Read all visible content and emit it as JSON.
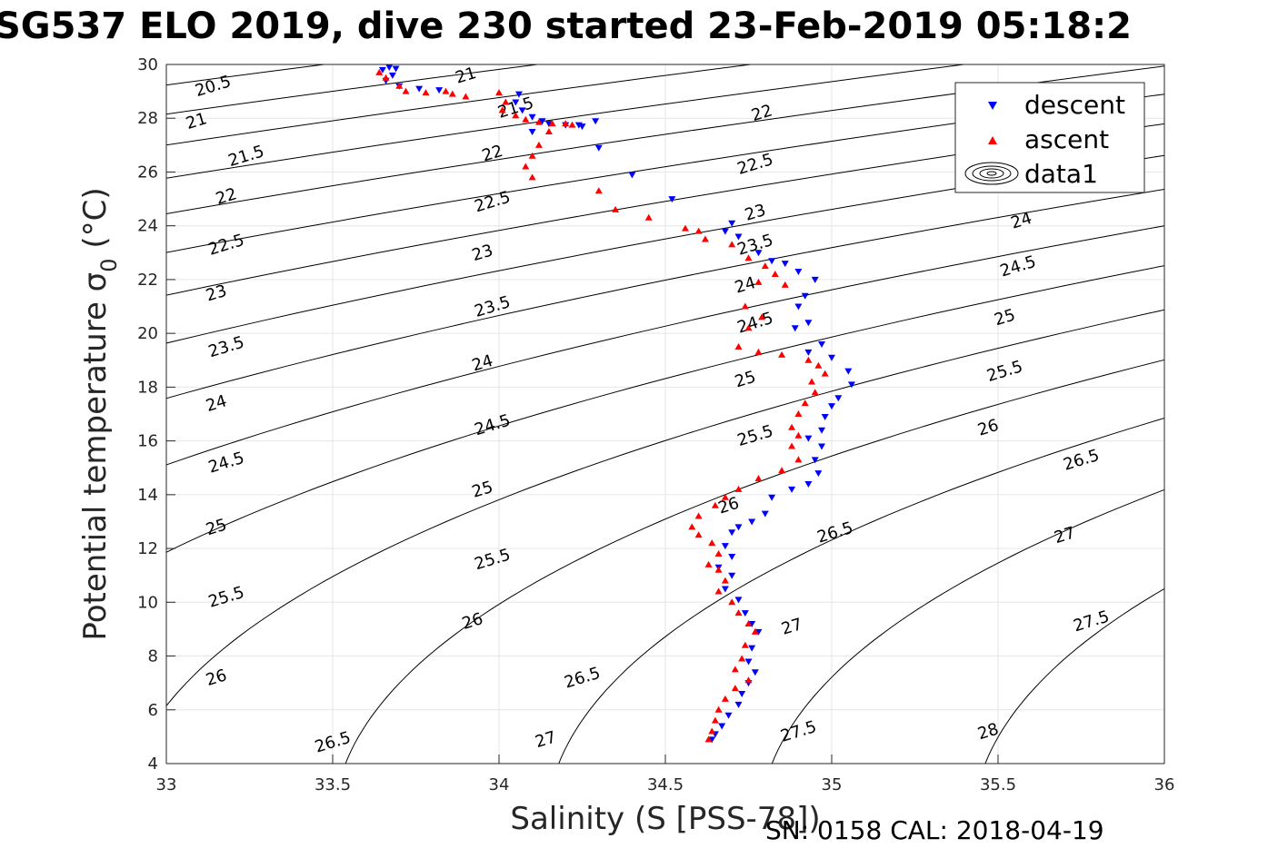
{
  "title": "SG537 ELO 2019, dive 230 started 23-Feb-2019 05:18:2",
  "footer": "SN: 0158  CAL: 2018-04-19",
  "chart_data": {
    "type": "scatter",
    "xlabel": "Salinity (S [PSS-78])",
    "ylabel_main": "Potential temperature σ",
    "ylabel_sub": "0",
    "ylabel_tail": " (°C)",
    "xlim": [
      33,
      36
    ],
    "ylim": [
      4,
      30
    ],
    "xticks": [
      33,
      33.5,
      34,
      34.5,
      35,
      35.5,
      36
    ],
    "xtick_labels": [
      "33",
      "33.5",
      "34",
      "34.5",
      "35",
      "35.5",
      "36"
    ],
    "yticks": [
      4,
      6,
      8,
      10,
      12,
      14,
      16,
      18,
      20,
      22,
      24,
      26,
      28,
      30
    ],
    "ytick_labels": [
      "4",
      "6",
      "8",
      "10",
      "12",
      "14",
      "16",
      "18",
      "20",
      "22",
      "24",
      "26",
      "28",
      "30"
    ],
    "grid": true,
    "legend_position": "top-right",
    "legend": [
      "descent",
      "ascent",
      "data1"
    ],
    "colors": {
      "descent": "#0000ff",
      "ascent": "#ff0000",
      "contour": "#000000",
      "grid": "#e6e6e6"
    },
    "density_contours": {
      "levels": [
        "20.5",
        "21",
        "21.5",
        "22",
        "22.5",
        "23",
        "23.5",
        "24",
        "24.5",
        "25",
        "25.5",
        "26",
        "26.5",
        "27",
        "27.5",
        "28"
      ],
      "labels": [
        {
          "text": "20.5",
          "s": 33.14,
          "t": 29.2
        },
        {
          "text": "21",
          "s": 33.09,
          "t": 27.9
        },
        {
          "text": "21.5",
          "s": 33.24,
          "t": 26.6
        },
        {
          "text": "22",
          "s": 33.18,
          "t": 25.1
        },
        {
          "text": "22.5",
          "s": 33.18,
          "t": 23.3
        },
        {
          "text": "23",
          "s": 33.15,
          "t": 21.5
        },
        {
          "text": "23.5",
          "s": 33.18,
          "t": 19.5
        },
        {
          "text": "24",
          "s": 33.15,
          "t": 17.4
        },
        {
          "text": "24.5",
          "s": 33.18,
          "t": 15.2
        },
        {
          "text": "25",
          "s": 33.15,
          "t": 12.8
        },
        {
          "text": "25.5",
          "s": 33.18,
          "t": 10.2
        },
        {
          "text": "26",
          "s": 33.15,
          "t": 7.2
        },
        {
          "text": "26.5",
          "s": 33.5,
          "t": 4.8
        },
        {
          "text": "21",
          "s": 33.9,
          "t": 29.6
        },
        {
          "text": "21.5",
          "s": 34.05,
          "t": 28.4
        },
        {
          "text": "22",
          "s": 33.98,
          "t": 26.7
        },
        {
          "text": "22.5",
          "s": 33.98,
          "t": 24.9
        },
        {
          "text": "23",
          "s": 33.95,
          "t": 23.0
        },
        {
          "text": "23.5",
          "s": 33.98,
          "t": 21.0
        },
        {
          "text": "24",
          "s": 33.95,
          "t": 18.9
        },
        {
          "text": "24.5",
          "s": 33.98,
          "t": 16.6
        },
        {
          "text": "25",
          "s": 33.95,
          "t": 14.2
        },
        {
          "text": "25.5",
          "s": 33.98,
          "t": 11.6
        },
        {
          "text": "26",
          "s": 33.92,
          "t": 9.3
        },
        {
          "text": "26.5",
          "s": 34.25,
          "t": 7.2
        },
        {
          "text": "27",
          "s": 34.14,
          "t": 4.9
        },
        {
          "text": "22",
          "s": 34.79,
          "t": 28.2
        },
        {
          "text": "22.5",
          "s": 34.77,
          "t": 26.3
        },
        {
          "text": "23",
          "s": 34.77,
          "t": 24.5
        },
        {
          "text": "23.5",
          "s": 34.77,
          "t": 23.3
        },
        {
          "text": "24",
          "s": 34.74,
          "t": 21.8
        },
        {
          "text": "24.5",
          "s": 34.77,
          "t": 20.4
        },
        {
          "text": "25",
          "s": 34.74,
          "t": 18.3
        },
        {
          "text": "25.5",
          "s": 34.77,
          "t": 16.2
        },
        {
          "text": "26",
          "s": 34.69,
          "t": 13.6
        },
        {
          "text": "26.5",
          "s": 35.01,
          "t": 12.6
        },
        {
          "text": "27",
          "s": 34.88,
          "t": 9.1
        },
        {
          "text": "27.5",
          "s": 34.9,
          "t": 5.2
        },
        {
          "text": "24",
          "s": 35.57,
          "t": 24.2
        },
        {
          "text": "24.5",
          "s": 35.56,
          "t": 22.5
        },
        {
          "text": "25",
          "s": 35.52,
          "t": 20.6
        },
        {
          "text": "25.5",
          "s": 35.52,
          "t": 18.6
        },
        {
          "text": "26",
          "s": 35.47,
          "t": 16.5
        },
        {
          "text": "26.5",
          "s": 35.75,
          "t": 15.3
        },
        {
          "text": "27",
          "s": 35.7,
          "t": 12.5
        },
        {
          "text": "27.5",
          "s": 35.78,
          "t": 9.3
        },
        {
          "text": "28",
          "s": 35.47,
          "t": 5.2
        }
      ]
    },
    "series": [
      {
        "name": "descent",
        "marker": "triangle-down",
        "points": [
          [
            33.65,
            29.8
          ],
          [
            33.67,
            29.9
          ],
          [
            33.69,
            29.85
          ],
          [
            33.68,
            29.6
          ],
          [
            33.66,
            29.4
          ],
          [
            33.7,
            29.2
          ],
          [
            33.76,
            29.1
          ],
          [
            33.82,
            29.05
          ],
          [
            34.06,
            28.9
          ],
          [
            34.05,
            28.6
          ],
          [
            34.07,
            28.3
          ],
          [
            34.1,
            28.05
          ],
          [
            34.13,
            27.9
          ],
          [
            34.15,
            27.8
          ],
          [
            34.2,
            27.75
          ],
          [
            34.25,
            27.7
          ],
          [
            34.29,
            27.9
          ],
          [
            34.24,
            27.75
          ],
          [
            34.1,
            27.5
          ],
          [
            34.3,
            26.9
          ],
          [
            34.4,
            25.9
          ],
          [
            34.52,
            25.0
          ],
          [
            34.7,
            24.1
          ],
          [
            34.68,
            23.8
          ],
          [
            34.72,
            23.6
          ],
          [
            34.78,
            23.0
          ],
          [
            34.82,
            22.7
          ],
          [
            34.86,
            22.6
          ],
          [
            34.9,
            22.3
          ],
          [
            34.95,
            22.0
          ],
          [
            34.92,
            21.4
          ],
          [
            34.9,
            21.0
          ],
          [
            34.93,
            20.4
          ],
          [
            34.89,
            20.2
          ],
          [
            34.97,
            19.6
          ],
          [
            34.93,
            19.3
          ],
          [
            35.0,
            19.1
          ],
          [
            35.05,
            18.6
          ],
          [
            35.06,
            18.1
          ],
          [
            35.02,
            17.6
          ],
          [
            35.0,
            17.3
          ],
          [
            34.98,
            16.9
          ],
          [
            34.97,
            16.4
          ],
          [
            34.93,
            16.1
          ],
          [
            34.97,
            15.8
          ],
          [
            34.95,
            15.3
          ],
          [
            34.96,
            14.8
          ],
          [
            34.93,
            14.4
          ],
          [
            34.88,
            14.2
          ],
          [
            34.82,
            13.9
          ],
          [
            34.8,
            13.3
          ],
          [
            34.76,
            13.0
          ],
          [
            34.72,
            12.8
          ],
          [
            34.7,
            12.6
          ],
          [
            34.68,
            12.1
          ],
          [
            34.7,
            11.7
          ],
          [
            34.66,
            11.3
          ],
          [
            34.7,
            11.0
          ],
          [
            34.68,
            10.5
          ],
          [
            34.72,
            10.1
          ],
          [
            34.74,
            9.6
          ],
          [
            34.76,
            9.2
          ],
          [
            34.78,
            8.9
          ],
          [
            34.76,
            8.3
          ],
          [
            34.75,
            7.8
          ],
          [
            34.77,
            7.4
          ],
          [
            34.75,
            7.0
          ],
          [
            34.73,
            6.6
          ],
          [
            34.72,
            6.2
          ],
          [
            34.69,
            5.8
          ],
          [
            34.67,
            5.4
          ],
          [
            34.65,
            5.1
          ],
          [
            34.64,
            4.9
          ]
        ]
      },
      {
        "name": "ascent",
        "marker": "triangle-up",
        "points": [
          [
            33.64,
            29.7
          ],
          [
            33.66,
            29.5
          ],
          [
            33.7,
            29.2
          ],
          [
            33.72,
            29.0
          ],
          [
            33.78,
            28.95
          ],
          [
            33.84,
            29.0
          ],
          [
            33.86,
            28.9
          ],
          [
            33.9,
            28.8
          ],
          [
            34.0,
            28.95
          ],
          [
            34.02,
            28.6
          ],
          [
            34.01,
            28.3
          ],
          [
            34.05,
            28.1
          ],
          [
            34.08,
            27.95
          ],
          [
            34.12,
            27.85
          ],
          [
            34.16,
            27.8
          ],
          [
            34.2,
            27.8
          ],
          [
            34.22,
            27.75
          ],
          [
            34.15,
            27.5
          ],
          [
            34.12,
            27.0
          ],
          [
            34.1,
            26.6
          ],
          [
            34.08,
            26.2
          ],
          [
            34.1,
            25.8
          ],
          [
            34.3,
            25.3
          ],
          [
            34.35,
            24.6
          ],
          [
            34.45,
            24.3
          ],
          [
            34.56,
            23.9
          ],
          [
            34.6,
            23.8
          ],
          [
            34.62,
            23.5
          ],
          [
            34.7,
            23.3
          ],
          [
            34.75,
            22.8
          ],
          [
            34.8,
            22.5
          ],
          [
            34.83,
            22.2
          ],
          [
            34.78,
            21.9
          ],
          [
            34.86,
            21.8
          ],
          [
            34.74,
            21.0
          ],
          [
            34.79,
            20.6
          ],
          [
            34.75,
            20.2
          ],
          [
            34.72,
            19.5
          ],
          [
            34.78,
            19.3
          ],
          [
            34.85,
            19.2
          ],
          [
            34.93,
            19.0
          ],
          [
            34.96,
            18.8
          ],
          [
            34.98,
            18.5
          ],
          [
            34.94,
            18.2
          ],
          [
            34.95,
            17.8
          ],
          [
            34.92,
            17.4
          ],
          [
            34.9,
            17.0
          ],
          [
            34.88,
            16.5
          ],
          [
            34.9,
            16.2
          ],
          [
            34.88,
            15.8
          ],
          [
            34.9,
            15.3
          ],
          [
            34.85,
            14.9
          ],
          [
            34.78,
            14.6
          ],
          [
            34.72,
            14.2
          ],
          [
            34.68,
            13.9
          ],
          [
            34.65,
            13.6
          ],
          [
            34.6,
            13.2
          ],
          [
            34.58,
            12.8
          ],
          [
            34.6,
            12.5
          ],
          [
            34.64,
            12.2
          ],
          [
            34.66,
            11.8
          ],
          [
            34.63,
            11.4
          ],
          [
            34.66,
            11.2
          ],
          [
            34.68,
            10.8
          ],
          [
            34.66,
            10.4
          ],
          [
            34.7,
            10.0
          ],
          [
            34.72,
            9.6
          ],
          [
            34.75,
            9.2
          ],
          [
            34.77,
            8.9
          ],
          [
            34.74,
            8.4
          ],
          [
            34.73,
            7.9
          ],
          [
            34.71,
            7.5
          ],
          [
            34.75,
            7.1
          ],
          [
            34.71,
            6.8
          ],
          [
            34.68,
            6.4
          ],
          [
            34.66,
            6.0
          ],
          [
            34.65,
            5.6
          ],
          [
            34.64,
            5.2
          ],
          [
            34.63,
            4.9
          ]
        ]
      }
    ]
  }
}
